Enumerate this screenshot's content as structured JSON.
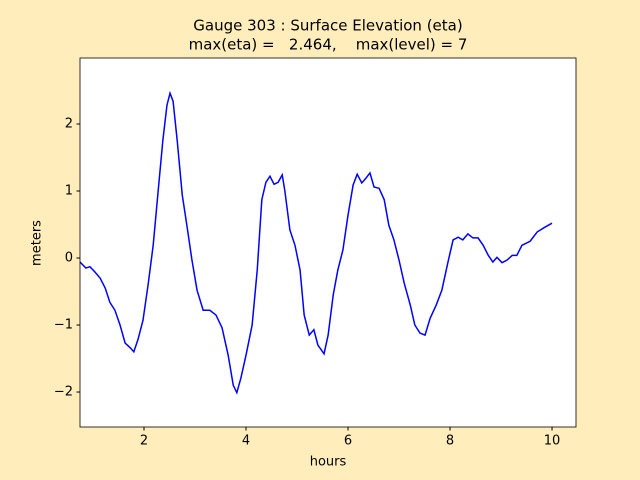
{
  "chart_data": {
    "type": "line",
    "title": "Gauge 303 : Surface Elevation (eta)",
    "subtitle": "max(eta) =   2.464,    max(level) = 7",
    "x_label": "hours",
    "y_label": "meters",
    "xlim": [
      0.745,
      10.47
    ],
    "ylim": [
      -2.522,
      2.985
    ],
    "xticks": [
      2,
      4,
      6,
      8,
      10
    ],
    "yticks": [
      {
        "value": -2,
        "label": "−2"
      },
      {
        "value": -1,
        "label": "−1"
      },
      0,
      1,
      2
    ],
    "grid": false,
    "x": [
      0.745,
      0.86,
      0.94,
      1.04,
      1.14,
      1.24,
      1.33,
      1.43,
      1.53,
      1.63,
      1.73,
      1.8,
      1.88,
      1.98,
      2.08,
      2.18,
      2.27,
      2.37,
      2.45,
      2.51,
      2.57,
      2.65,
      2.75,
      2.84,
      2.94,
      3.04,
      3.16,
      3.29,
      3.41,
      3.53,
      3.65,
      3.75,
      3.82,
      3.9,
      4.0,
      4.12,
      4.22,
      4.31,
      4.39,
      4.47,
      4.55,
      4.63,
      4.71,
      4.76,
      4.86,
      4.96,
      5.06,
      5.14,
      5.24,
      5.33,
      5.41,
      5.53,
      5.61,
      5.71,
      5.8,
      5.9,
      6.0,
      6.1,
      6.18,
      6.27,
      6.35,
      6.43,
      6.51,
      6.61,
      6.71,
      6.8,
      6.9,
      7.0,
      7.1,
      7.22,
      7.31,
      7.41,
      7.51,
      7.61,
      7.73,
      7.84,
      7.96,
      8.06,
      8.16,
      8.25,
      8.35,
      8.45,
      8.55,
      8.65,
      8.75,
      8.84,
      8.92,
      9.02,
      9.12,
      9.22,
      9.31,
      9.41,
      9.57,
      9.71,
      9.86,
      10.0
    ],
    "series": [
      {
        "name": "eta",
        "color": "#0000ff",
        "values": [
          -0.06,
          -0.15,
          -0.13,
          -0.21,
          -0.3,
          -0.45,
          -0.66,
          -0.78,
          -1.0,
          -1.27,
          -1.34,
          -1.4,
          -1.22,
          -0.93,
          -0.4,
          0.19,
          0.94,
          1.76,
          2.28,
          2.46,
          2.34,
          1.76,
          0.94,
          0.49,
          -0.03,
          -0.48,
          -0.78,
          -0.78,
          -0.85,
          -1.04,
          -1.45,
          -1.9,
          -2.01,
          -1.79,
          -1.45,
          -1.0,
          -0.18,
          0.87,
          1.13,
          1.22,
          1.1,
          1.13,
          1.24,
          1.01,
          0.42,
          0.19,
          -0.18,
          -0.85,
          -1.15,
          -1.07,
          -1.3,
          -1.43,
          -1.15,
          -0.55,
          -0.18,
          0.12,
          0.64,
          1.09,
          1.25,
          1.12,
          1.19,
          1.27,
          1.06,
          1.04,
          0.87,
          0.49,
          0.27,
          -0.03,
          -0.37,
          -0.7,
          -1.0,
          -1.12,
          -1.15,
          -0.9,
          -0.7,
          -0.48,
          -0.06,
          0.27,
          0.31,
          0.27,
          0.36,
          0.3,
          0.3,
          0.19,
          0.04,
          -0.06,
          0.01,
          -0.07,
          -0.03,
          0.04,
          0.04,
          0.19,
          0.25,
          0.39,
          0.46,
          0.52
        ]
      }
    ]
  }
}
